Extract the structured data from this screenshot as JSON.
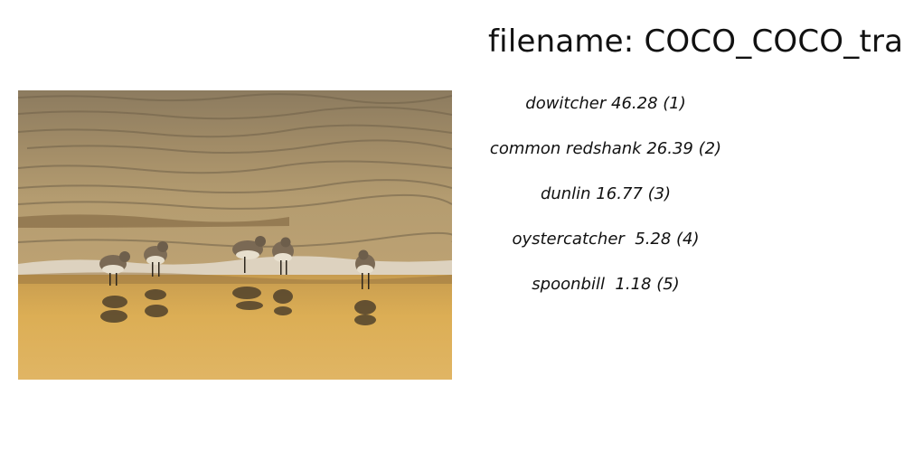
{
  "title": "filename: COCO_COCO_train",
  "image": {
    "subject": "shorebirds-at-water-edge",
    "colors": {
      "water_top": "#8a7a5e",
      "water_mid": "#a89169",
      "surf": "#d8cdb8",
      "sand": "#d9ad55",
      "bird_shadow": "#3d3325"
    }
  },
  "predictions": [
    {
      "text": "dowitcher 46.28 (1)"
    },
    {
      "text": "common redshank 26.39 (2)"
    },
    {
      "text": "dunlin 16.77 (3)"
    },
    {
      "text": "oystercatcher  5.28 (4)"
    },
    {
      "text": "spoonbill  1.18 (5)"
    }
  ]
}
